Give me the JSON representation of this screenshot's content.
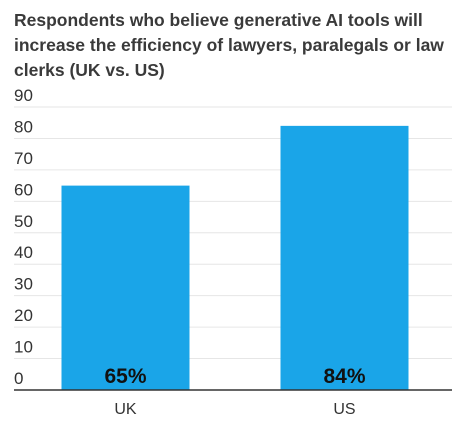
{
  "chart_data": {
    "type": "bar",
    "title": "Respondents who believe generative AI tools will increase the efficiency of lawyers, paralegals or law clerks (UK vs. US)",
    "categories": [
      "UK",
      "US"
    ],
    "values": [
      65,
      84
    ],
    "data_labels": [
      "65%",
      "84%"
    ],
    "xlabel": "",
    "ylabel": "",
    "ylim": [
      0,
      90
    ],
    "yticks": [
      0,
      10,
      20,
      30,
      40,
      50,
      60,
      70,
      80,
      90
    ],
    "grid": true,
    "legend": "none",
    "bar_color": "#1aa5e8",
    "grid_color": "#e6e6e6",
    "axis_color": "#333333"
  }
}
